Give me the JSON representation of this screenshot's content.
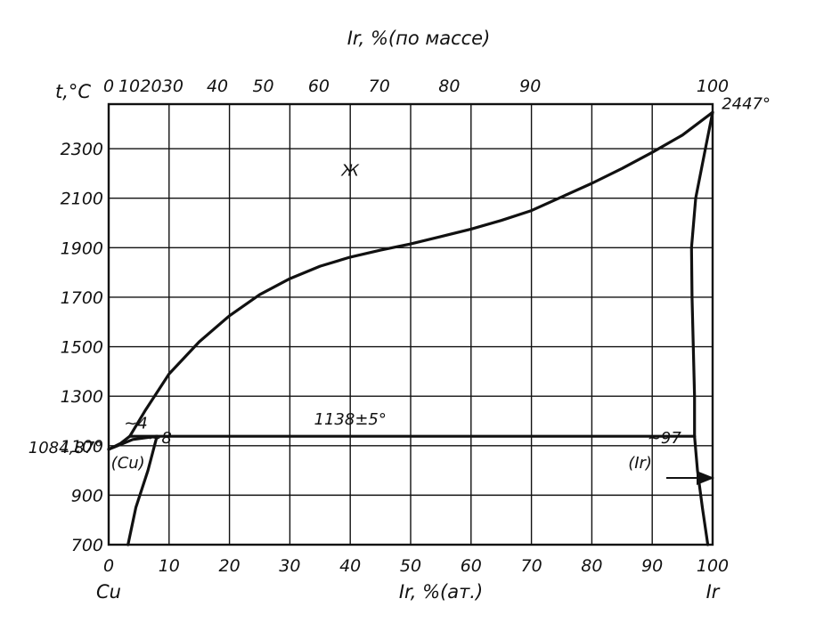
{
  "chart_data": {
    "type": "line",
    "title": "",
    "xlabel": "Ir, %(ат.)",
    "x2label": "Ir, %(по массе)",
    "ylabel": "t,°C",
    "xlim": [
      0,
      100
    ],
    "ylim": [
      700,
      2480
    ],
    "x_ticks": [
      0,
      10,
      20,
      30,
      40,
      50,
      60,
      70,
      80,
      90,
      100
    ],
    "x_tick_labels": [
      "0",
      "10",
      "20",
      "30",
      "40",
      "50",
      "60",
      "70",
      "80",
      "90",
      "100"
    ],
    "y_ticks": [
      700,
      900,
      1100,
      1300,
      1500,
      1700,
      1900,
      2100,
      2300
    ],
    "y_tick_labels": [
      "700",
      "900",
      "1100",
      "1300",
      "1500",
      "1700",
      "1900",
      "2100",
      "2300"
    ],
    "top_ticks_at": [
      0,
      3.4,
      7.0,
      10.6,
      18.0,
      25.6,
      34.8,
      44.8,
      56.4,
      69.8,
      100
    ],
    "top_tick_labels": [
      "0",
      "10",
      "20",
      "30",
      "40",
      "50",
      "60",
      "70",
      "80",
      "90",
      "100"
    ],
    "left_element": "Cu",
    "right_element": "Ir",
    "grid": true,
    "series": [
      {
        "points": [
          [
            0,
            1085
          ],
          [
            2,
            1110
          ],
          [
            3.5,
            1138
          ],
          [
            6,
            1240
          ],
          [
            10,
            1390
          ],
          [
            15,
            1520
          ],
          [
            20,
            1625
          ],
          [
            25,
            1710
          ],
          [
            30,
            1775
          ],
          [
            35,
            1825
          ],
          [
            40,
            1862
          ],
          [
            45,
            1890
          ],
          [
            50,
            1915
          ],
          [
            55,
            1945
          ],
          [
            60,
            1975
          ],
          [
            65,
            2010
          ],
          [
            70,
            2050
          ],
          [
            75,
            2105
          ],
          [
            80,
            2160
          ],
          [
            85,
            2220
          ],
          [
            90,
            2285
          ],
          [
            95,
            2355
          ],
          [
            100,
            2447
          ]
        ]
      },
      {
        "points": [
          [
            100,
            2447
          ],
          [
            98.8,
            2300
          ],
          [
            97.2,
            2100
          ],
          [
            96.5,
            1900
          ],
          [
            96.6,
            1700
          ],
          [
            96.8,
            1500
          ],
          [
            97.0,
            1300
          ],
          [
            97.0,
            1138
          ]
        ]
      },
      {
        "points": [
          [
            0,
            1085
          ],
          [
            4,
            1125
          ],
          [
            8,
            1138
          ]
        ]
      },
      {
        "points": [
          [
            3.5,
            1138
          ],
          [
            97,
            1138
          ]
        ]
      },
      {
        "points": [
          [
            8,
            1138
          ],
          [
            6.5,
            1000
          ],
          [
            4.5,
            850
          ],
          [
            3.2,
            700
          ]
        ]
      },
      {
        "points": [
          [
            97,
            1138
          ],
          [
            97.5,
            1000
          ],
          [
            98.3,
            850
          ],
          [
            99.2,
            700
          ]
        ]
      }
    ],
    "annotations": [
      {
        "text": "Ж",
        "x": 40,
        "y": 2190
      },
      {
        "text": "1138±5°",
        "x": 40,
        "y": 1185
      },
      {
        "text": "~4",
        "x": 4.5,
        "y": 1170
      },
      {
        "text": "~8",
        "x": 8.5,
        "y": 1110
      },
      {
        "text": "~97",
        "x": 92,
        "y": 1110
      },
      {
        "text": "2447°",
        "x": 101.5,
        "y": 2460
      },
      {
        "text": "1084,87°",
        "x": -1,
        "y": 1070
      },
      {
        "text": "(Cu)",
        "x": 3.2,
        "y": 1010
      },
      {
        "text": "(Ir)",
        "x": 88,
        "y": 1010
      }
    ]
  }
}
